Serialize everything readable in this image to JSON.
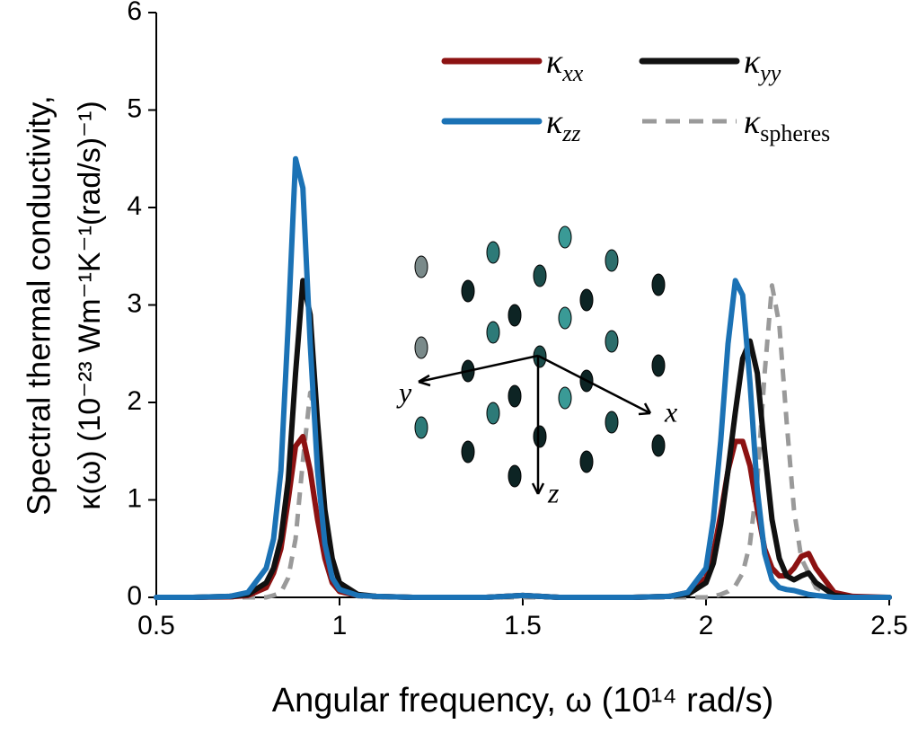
{
  "chart_data": {
    "type": "line",
    "xlabel": "Angular frequency, ω (10¹⁴ rad/s)",
    "ylabel": [
      "Spectral thermal conductivity,",
      "κ(ω) (10⁻²³ Wm⁻¹K⁻¹(rad/s)⁻¹)"
    ],
    "x": [
      0.5,
      0.6,
      0.7,
      0.75,
      0.8,
      0.82,
      0.84,
      0.86,
      0.88,
      0.9,
      0.92,
      0.94,
      0.96,
      0.98,
      1.0,
      1.05,
      1.1,
      1.2,
      1.3,
      1.4,
      1.5,
      1.6,
      1.7,
      1.8,
      1.9,
      1.95,
      2.0,
      2.02,
      2.04,
      2.06,
      2.08,
      2.1,
      2.12,
      2.14,
      2.16,
      2.18,
      2.2,
      2.22,
      2.24,
      2.26,
      2.28,
      2.3,
      2.35,
      2.4,
      2.5
    ],
    "series": [
      {
        "name": "κxx",
        "color": "#8c1212",
        "dash": false,
        "values": [
          0,
          0,
          0.005,
          0.02,
          0.1,
          0.25,
          0.5,
          1.0,
          1.55,
          1.65,
          1.3,
          0.8,
          0.4,
          0.15,
          0.06,
          0.02,
          0.01,
          0,
          0,
          0,
          0.02,
          0,
          0,
          0,
          0.01,
          0.05,
          0.2,
          0.45,
          0.85,
          1.3,
          1.6,
          1.6,
          1.35,
          0.9,
          0.5,
          0.3,
          0.22,
          0.22,
          0.3,
          0.42,
          0.45,
          0.3,
          0.05,
          0.01,
          0
        ]
      },
      {
        "name": "κyy",
        "color": "#111111",
        "dash": false,
        "values": [
          0,
          0,
          0.01,
          0.03,
          0.15,
          0.3,
          0.6,
          1.2,
          2.3,
          3.25,
          2.9,
          1.8,
          0.9,
          0.4,
          0.15,
          0.03,
          0.01,
          0,
          0,
          0,
          0.02,
          0,
          0,
          0,
          0.01,
          0.03,
          0.15,
          0.35,
          0.75,
          1.3,
          1.9,
          2.45,
          2.63,
          2.3,
          1.5,
          0.8,
          0.4,
          0.22,
          0.18,
          0.22,
          0.25,
          0.15,
          0.02,
          0,
          0
        ]
      },
      {
        "name": "κzz",
        "color": "#1b72b5",
        "dash": false,
        "values": [
          0,
          0,
          0.01,
          0.05,
          0.3,
          0.6,
          1.3,
          2.8,
          4.5,
          4.2,
          2.6,
          1.3,
          0.55,
          0.2,
          0.08,
          0.02,
          0.01,
          0,
          0,
          0,
          0.02,
          0,
          0,
          0,
          0.01,
          0.05,
          0.3,
          0.8,
          1.6,
          2.6,
          3.25,
          3.1,
          2.2,
          1.1,
          0.45,
          0.18,
          0.1,
          0.08,
          0.07,
          0.05,
          0.03,
          0.02,
          0,
          0,
          0
        ]
      },
      {
        "name": "κspheres",
        "color": "#9a9a9a",
        "dash": true,
        "values": [
          0,
          0,
          0,
          0,
          0,
          0.02,
          0.05,
          0.2,
          0.6,
          1.4,
          2.1,
          1.8,
          0.9,
          0.35,
          0.1,
          0.01,
          0,
          0,
          0,
          0,
          0,
          0,
          0,
          0,
          0,
          0,
          0,
          0.01,
          0.03,
          0.06,
          0.12,
          0.25,
          0.55,
          1.2,
          2.3,
          3.2,
          2.8,
          1.8,
          0.9,
          0.4,
          0.25,
          0.1,
          0.01,
          0,
          0
        ]
      }
    ],
    "xlim": [
      0.5,
      2.5
    ],
    "ylim": [
      0,
      6
    ],
    "xticks": [
      0.5,
      1,
      1.5,
      2,
      2.5
    ],
    "yticks": [
      0,
      1,
      2,
      3,
      4,
      5,
      6
    ],
    "annotations": [
      "x",
      "y",
      "z"
    ]
  }
}
